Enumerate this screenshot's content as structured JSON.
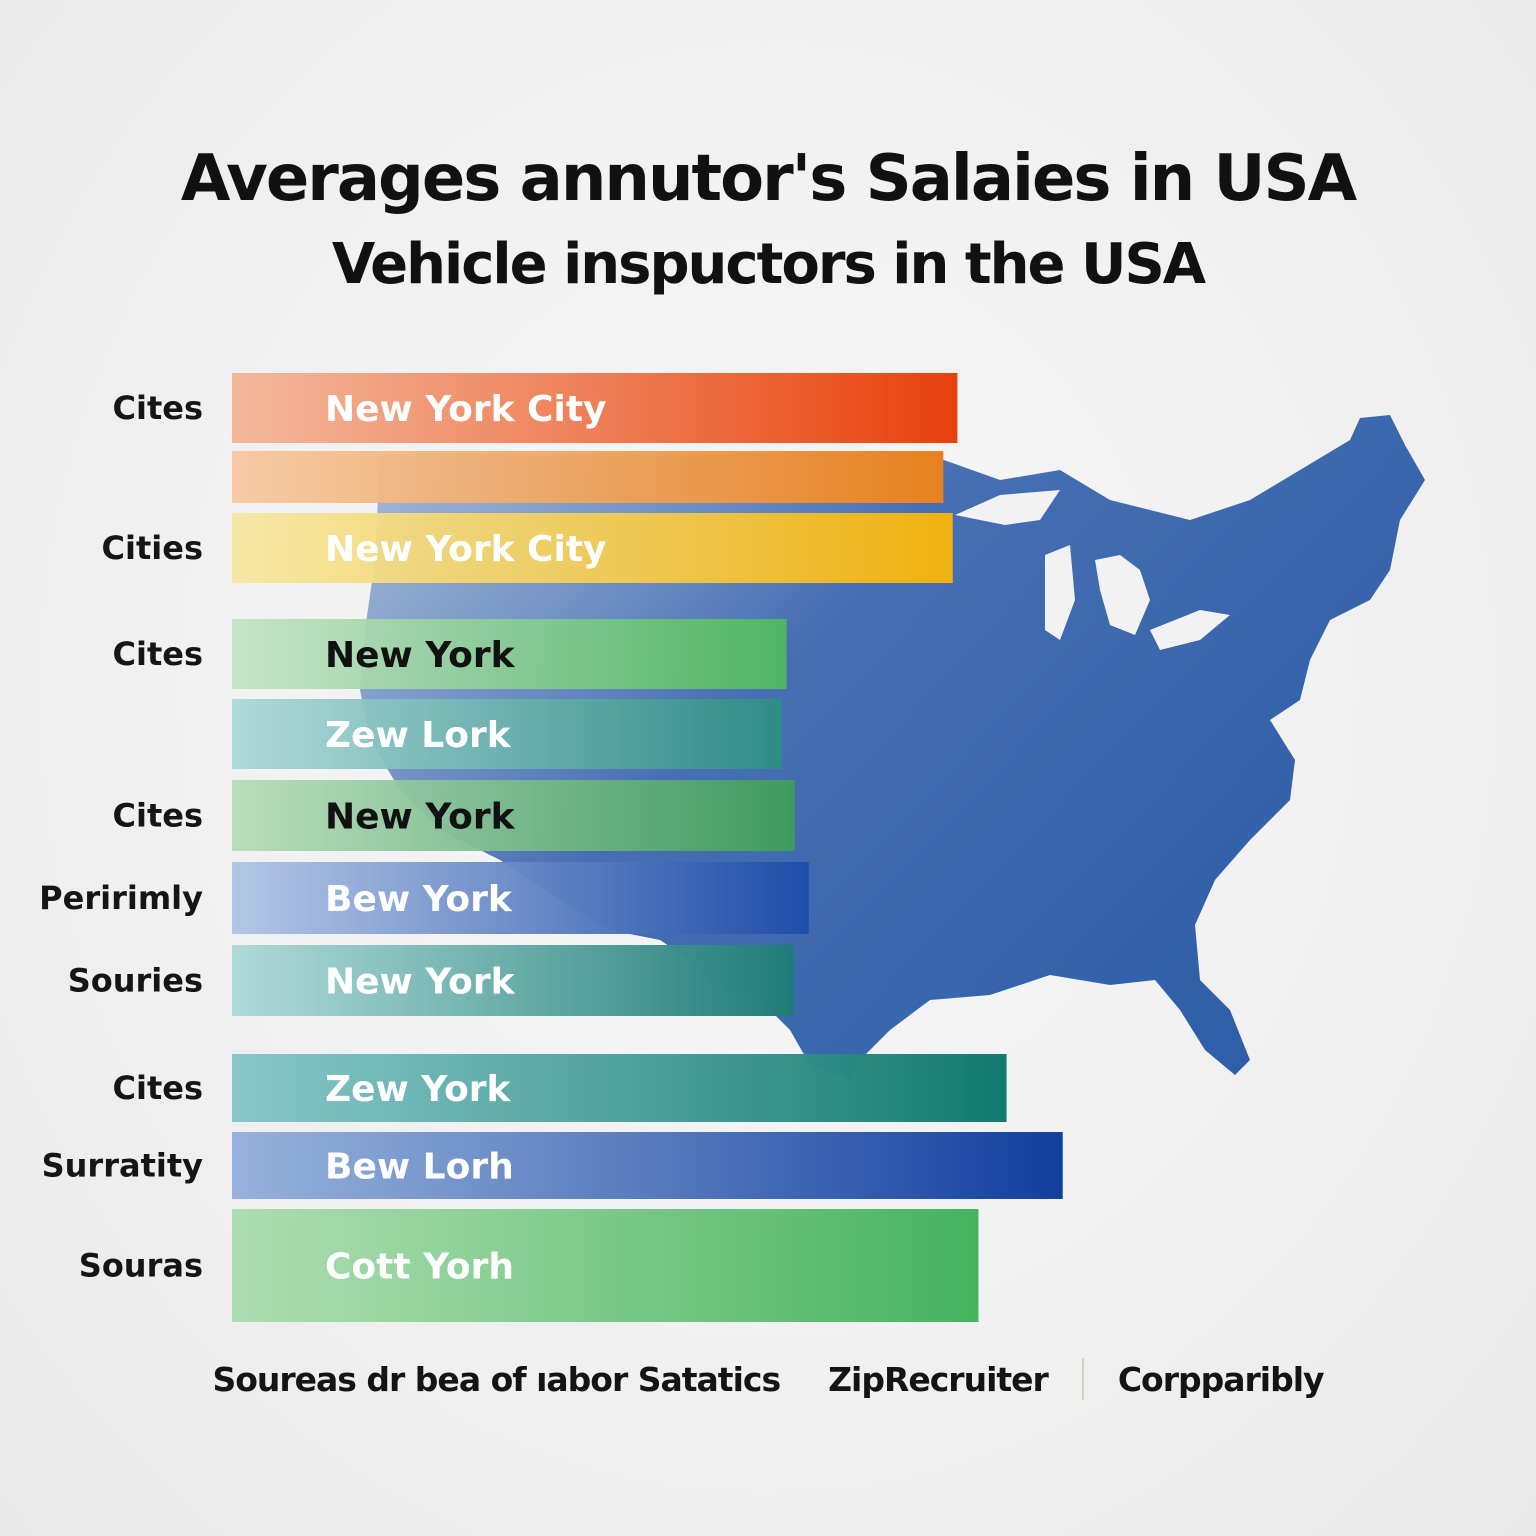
{
  "title": "Averages annutor's Salaies in USA",
  "subtitle": "Vehicle inspuctors in the USA",
  "map": {
    "fill": "#2f5fa8",
    "lake_fill": "#f2f2f2"
  },
  "chart_data": {
    "type": "bar",
    "orientation": "horizontal",
    "x_range": [
      0,
      100
    ],
    "grid": false,
    "bars": [
      {
        "row_label": "Cites",
        "label": "New York City",
        "value": 62.0,
        "color_start": "#f4b394",
        "color_end": "#e8400c",
        "label_color": "#ffffff"
      },
      {
        "row_label": "",
        "label": "",
        "value": 60.8,
        "color_start": "#f6c79e",
        "color_end": "#e8821f",
        "label_color": "#ffffff"
      },
      {
        "row_label": "Cities",
        "label": "New York City",
        "value": 61.6,
        "color_start": "#f6e79e",
        "color_end": "#f0b20f",
        "label_color": "#ffffff"
      },
      {
        "row_label": "Cites",
        "label": "New York",
        "value": 47.4,
        "color_start": "#c3e3c6",
        "color_end": "#4fb563",
        "label_color": "#111111"
      },
      {
        "row_label": "",
        "label": "Zew Lork",
        "value": 47.0,
        "color_start": "#a9d8d6",
        "color_end": "#2f8b87",
        "label_color": "#ffffff"
      },
      {
        "row_label": "Cites",
        "label": "New York",
        "value": 48.1,
        "color_start": "#b5dcb8",
        "color_end": "#3f9a60",
        "label_color": "#111111"
      },
      {
        "row_label": "Peririmly",
        "label": "Bew York",
        "value": 49.3,
        "color_start": "#aec2e4",
        "color_end": "#1e4ea8",
        "label_color": "#ffffff"
      },
      {
        "row_label": "Souries",
        "label": "New York",
        "value": 48.0,
        "color_start": "#a9d8d6",
        "color_end": "#1f7c78",
        "label_color": "#ffffff"
      },
      {
        "row_label": "Cites",
        "label": "Zew York",
        "value": 66.2,
        "color_start": "#7fc3c6",
        "color_end": "#127a6e",
        "label_color": "#ffffff"
      },
      {
        "row_label": "Surratity",
        "label": "Bew Lorh",
        "value": 71.0,
        "color_start": "#8facd9",
        "color_end": "#113f9e",
        "label_color": "#ffffff"
      },
      {
        "row_label": "Souras",
        "label": "Cott Yorh",
        "value": 63.8,
        "color_start": "#a8dcac",
        "color_end": "#45b35e",
        "label_color": "#ffffff"
      }
    ]
  },
  "sources": {
    "items": [
      "Soureas dr bea of ıabor Satatics",
      "ZipRecruiter",
      "Corpparibly"
    ]
  }
}
